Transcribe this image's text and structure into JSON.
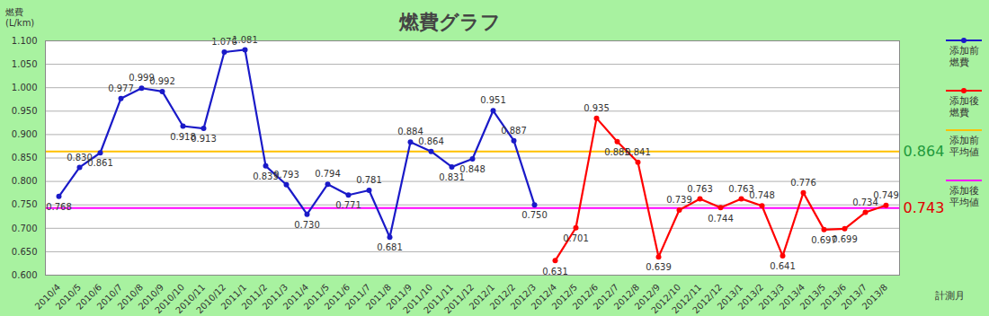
{
  "chart_data": {
    "type": "line",
    "title": "燃費グラフ",
    "y_label": "燃費\n(L/km)",
    "x_label": "計測月",
    "categories": [
      "2010/4",
      "2010/5",
      "2010/6",
      "2010/7",
      "2010/8",
      "2010/9",
      "2010/10",
      "2010/11",
      "2010/12",
      "2011/1",
      "2011/2",
      "2011/3",
      "2011/4",
      "2011/5",
      "2011/6",
      "2011/7",
      "2011/8",
      "2011/9",
      "2011/10",
      "2011/11",
      "2011/12",
      "2012/1",
      "2012/2",
      "2012/3",
      "2012/4",
      "2012/5",
      "2012/6",
      "2012/7",
      "2012/8",
      "2012/9",
      "2012/10",
      "2012/11",
      "2012/12",
      "2013/1",
      "2013/2",
      "2013/3",
      "2013/4",
      "2013/5",
      "2013/6",
      "2013/7",
      "2013/8"
    ],
    "series": [
      {
        "name": "添加前燃費",
        "color": "#1a1ac8",
        "marker": "circle",
        "values": [
          0.768,
          0.83,
          0.861,
          0.977,
          0.999,
          0.992,
          0.918,
          0.913,
          1.076,
          1.081,
          0.833,
          0.793,
          0.73,
          0.794,
          0.771,
          0.781,
          0.681,
          0.884,
          0.864,
          0.831,
          0.848,
          0.951,
          0.887,
          0.75,
          null,
          null,
          null,
          null,
          null,
          null,
          null,
          null,
          null,
          null,
          null,
          null,
          null,
          null,
          null,
          null,
          null
        ],
        "value_labels": [
          "0.768",
          "0.830",
          "0.861",
          "0.977",
          "0.999",
          "0.992",
          "0.918",
          "0.913",
          "1.076",
          "1.081",
          "0.833",
          "0.793",
          "0.730",
          "0.794",
          "0.771",
          "0.781",
          "0.681",
          "0.884",
          "0.864",
          "0.831",
          "0.848",
          "0.951",
          "0.887",
          "0.750",
          null,
          null,
          null,
          null,
          null,
          null,
          null,
          null,
          null,
          null,
          null,
          null,
          null,
          null,
          null,
          null,
          null
        ]
      },
      {
        "name": "添加後燃費",
        "color": "#ff0000",
        "marker": "circle",
        "values": [
          null,
          null,
          null,
          null,
          null,
          null,
          null,
          null,
          null,
          null,
          null,
          null,
          null,
          null,
          null,
          null,
          null,
          null,
          null,
          null,
          null,
          null,
          null,
          null,
          0.631,
          0.701,
          0.935,
          0.885,
          0.841,
          0.639,
          0.739,
          0.763,
          0.744,
          0.763,
          0.748,
          0.641,
          0.776,
          0.697,
          0.699,
          0.734,
          0.749
        ],
        "value_labels": [
          null,
          null,
          null,
          null,
          null,
          null,
          null,
          null,
          null,
          null,
          null,
          null,
          null,
          null,
          null,
          null,
          null,
          null,
          null,
          null,
          null,
          null,
          null,
          null,
          "0.631",
          "0.701",
          "0.935",
          "0.885",
          "0.841",
          "0.639",
          "0.739",
          "0.763",
          "0.744",
          "0.763",
          "0.748",
          "0.641",
          "0.776",
          "0.697",
          "0.699",
          "0.734",
          "0.749"
        ]
      }
    ],
    "average_lines": [
      {
        "name": "添加前平均値",
        "color": "#ffc000",
        "value": 0.864,
        "label": "0.864"
      },
      {
        "name": "添加後平均値",
        "color": "#ff00ff",
        "value": 0.743,
        "label": "0.743"
      }
    ],
    "ylim": [
      0.6,
      1.1
    ],
    "yticks": [
      {
        "value": 0.6,
        "label": "0.600"
      },
      {
        "value": 0.65,
        "label": "0.650"
      },
      {
        "value": 0.7,
        "label": "0.700"
      },
      {
        "value": 0.75,
        "label": "0.750"
      },
      {
        "value": 0.8,
        "label": "0.800"
      },
      {
        "value": 0.85,
        "label": "0.850"
      },
      {
        "value": 0.9,
        "label": "0.900"
      },
      {
        "value": 0.95,
        "label": "0.950"
      },
      {
        "value": 1.0,
        "label": "1.000"
      },
      {
        "value": 1.05,
        "label": "1.050"
      },
      {
        "value": 1.1,
        "label": "1.100"
      }
    ],
    "grid": true,
    "data_labels": true,
    "legend": "right"
  }
}
